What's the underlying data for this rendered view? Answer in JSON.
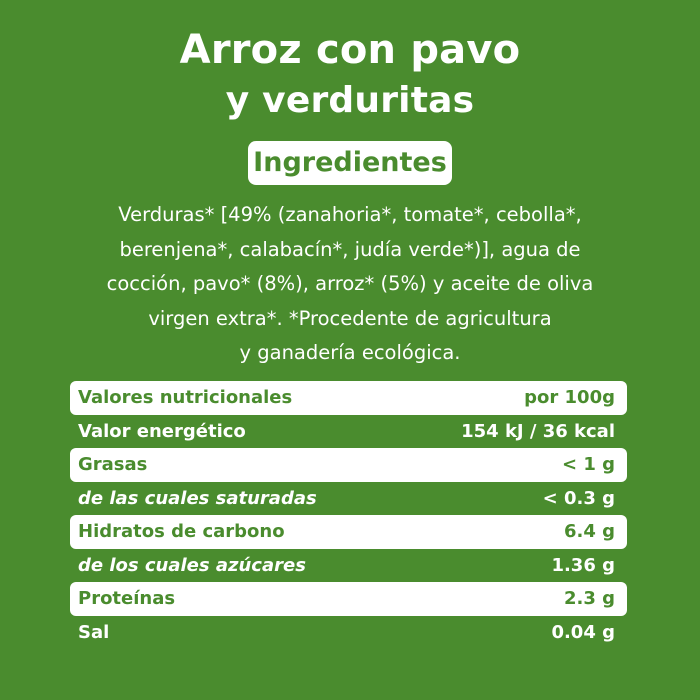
{
  "title": {
    "line1": "Arroz con pavo",
    "line2": "y verduritas"
  },
  "ingredients_heading": "Ingredientes",
  "ingredients_lines": [
    "Verduras* [49% (zanahoria*, tomate*, cebolla*,",
    "berenjena*, calabacín*, judía verde*)], agua de",
    "cocción, pavo* (8%), arroz* (5%) y aceite de oliva",
    "virgen extra*. *Procedente de agricultura",
    "y ganadería ecológica."
  ],
  "nutrition": {
    "rows": [
      {
        "label": "Valores nutricionales",
        "value": "por 100g"
      },
      {
        "label": "Valor energético",
        "value": "154 kJ / 36 kcal"
      },
      {
        "label": "Grasas",
        "value": "< 1 g"
      },
      {
        "label": "de las cuales saturadas",
        "value": "< 0.3 g"
      },
      {
        "label": "Hidratos de carbono",
        "value": "6.4 g"
      },
      {
        "label": "de los cuales azúcares",
        "value": "1.36 g"
      },
      {
        "label": "Proteínas",
        "value": "2.3 g"
      },
      {
        "label": "Sal",
        "value": "0.04 g"
      }
    ]
  },
  "colors": {
    "background": "#4a8c2e",
    "box": "#ffffff",
    "text_on_green": "#ffffff",
    "text_on_white": "#4a8c2e"
  }
}
